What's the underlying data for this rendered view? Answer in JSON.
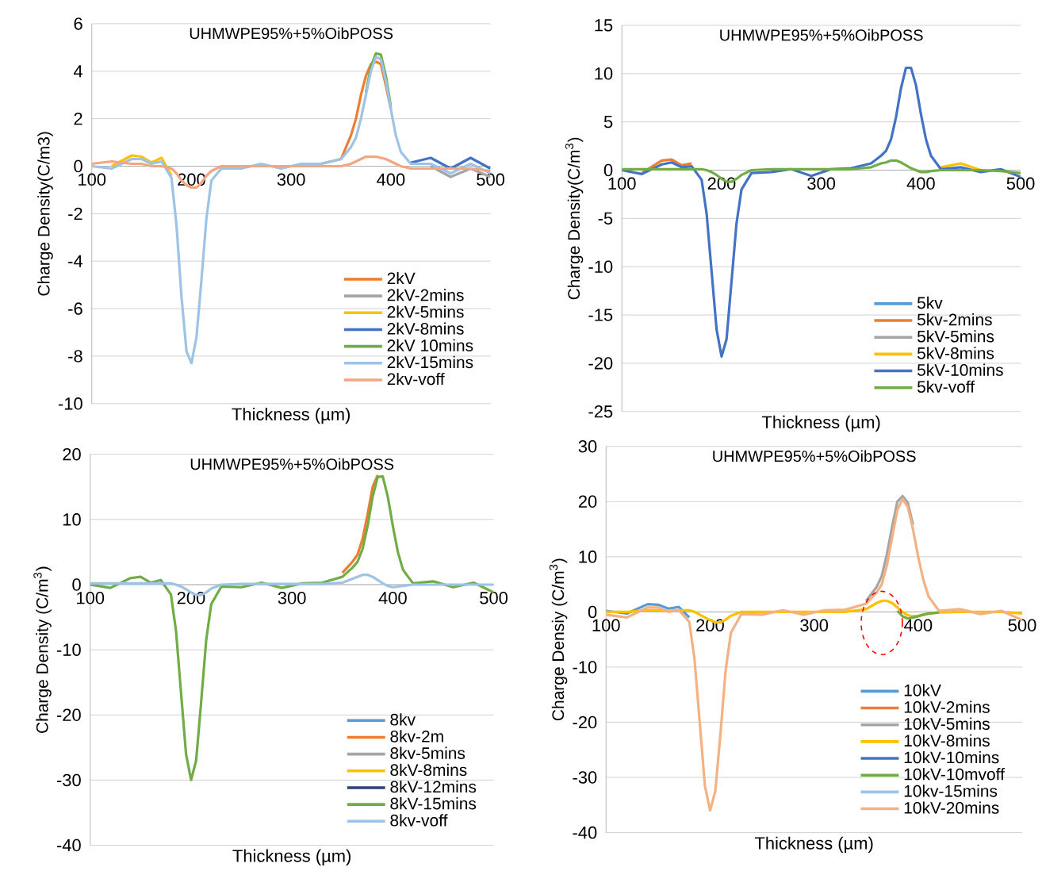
{
  "chart_data": [
    {
      "type": "line",
      "title": "UHMWPE95%+5%OibPOSS",
      "xlabel": "Thickness (µm)",
      "ylabel": "Charge Density(C/m3)",
      "xlim": [
        100,
        500
      ],
      "xticks": [
        100,
        200,
        300,
        400,
        500
      ],
      "ylim": [
        -10,
        6
      ],
      "yticks": [
        -10,
        -8,
        -6,
        -4,
        -2,
        0,
        2,
        4,
        6
      ],
      "grid": "y",
      "legend": "bottom right",
      "x": [
        100,
        120,
        140,
        150,
        160,
        170,
        180,
        185,
        190,
        195,
        200,
        205,
        210,
        215,
        220,
        230,
        250,
        270,
        290,
        310,
        330,
        350,
        360,
        365,
        370,
        375,
        380,
        385,
        390,
        395,
        400,
        405,
        410,
        420,
        440,
        460,
        480,
        500
      ],
      "series": [
        {
          "name": "2kV",
          "color": "#ed7d31",
          "values": [
            null,
            null,
            null,
            null,
            null,
            null,
            null,
            null,
            null,
            null,
            null,
            null,
            null,
            null,
            null,
            null,
            null,
            null,
            null,
            null,
            0.1,
            0.3,
            1.3,
            2.0,
            3.0,
            3.8,
            4.3,
            4.4,
            4.3,
            3.4,
            2.4,
            null,
            null,
            null,
            null,
            null,
            null,
            null
          ]
        },
        {
          "name": "2kV-2mins",
          "color": "#a5a5a5",
          "values": [
            null,
            null,
            null,
            null,
            null,
            null,
            null,
            null,
            null,
            null,
            null,
            null,
            null,
            null,
            null,
            null,
            null,
            null,
            null,
            null,
            null,
            null,
            null,
            null,
            null,
            null,
            null,
            null,
            null,
            null,
            null,
            null,
            null,
            null,
            0.0,
            -0.45,
            -0.1,
            -0.45
          ]
        },
        {
          "name": "2kV-5mins",
          "color": "#ffc000",
          "values": [
            null,
            0.0,
            0.45,
            0.4,
            0.15,
            0.35,
            -0.4,
            null,
            null,
            null,
            null,
            null,
            null,
            null,
            null,
            null,
            null,
            null,
            null,
            null,
            null,
            null,
            null,
            null,
            null,
            null,
            null,
            null,
            null,
            null,
            null,
            null,
            null,
            null,
            null,
            null,
            null,
            null
          ]
        },
        {
          "name": "2kV-8mins",
          "color": "#4472c4",
          "values": [
            null,
            null,
            null,
            null,
            null,
            null,
            null,
            null,
            null,
            null,
            null,
            null,
            null,
            null,
            null,
            null,
            null,
            null,
            null,
            null,
            null,
            null,
            null,
            null,
            null,
            null,
            null,
            null,
            null,
            null,
            null,
            null,
            null,
            0.15,
            0.35,
            -0.1,
            0.35,
            -0.1
          ]
        },
        {
          "name": "2kV 10mins",
          "color": "#70ad47",
          "values": [
            null,
            null,
            null,
            null,
            null,
            null,
            null,
            null,
            null,
            null,
            null,
            null,
            null,
            null,
            null,
            null,
            null,
            null,
            null,
            null,
            null,
            null,
            null,
            null,
            null,
            3.1,
            4.2,
            4.75,
            4.7,
            3.8,
            2.5,
            null,
            null,
            null,
            null,
            null,
            null,
            null
          ]
        },
        {
          "name": "2kV-15mins",
          "color": "#9dc3e6",
          "values": [
            0.0,
            -0.1,
            0.3,
            0.3,
            0.1,
            0.2,
            -0.5,
            -2.5,
            -5.5,
            -7.8,
            -8.3,
            -7.2,
            -4.8,
            -2.2,
            -0.6,
            -0.1,
            -0.1,
            0.1,
            -0.1,
            0.1,
            0.1,
            0.3,
            0.8,
            1.2,
            2.0,
            3.0,
            4.0,
            4.6,
            4.5,
            3.6,
            2.4,
            1.3,
            0.6,
            0.1,
            0.1,
            -0.3,
            0.1,
            -0.3
          ]
        },
        {
          "name": "2kv-voff",
          "color": "#f4a582",
          "values": [
            0.1,
            0.2,
            0.1,
            0.1,
            0.0,
            0.0,
            -0.1,
            -0.3,
            -0.6,
            -0.8,
            -0.9,
            -0.9,
            -0.7,
            -0.4,
            -0.2,
            0.0,
            0.0,
            0.0,
            0.0,
            0.0,
            0.0,
            0.0,
            0.1,
            0.2,
            0.3,
            0.4,
            0.4,
            0.4,
            0.35,
            0.3,
            0.2,
            0.1,
            0.0,
            -0.1,
            -0.1,
            -0.1,
            -0.1,
            -0.2
          ]
        }
      ]
    },
    {
      "type": "line",
      "title": "UHMWPE95%+5%OibPOSS",
      "xlabel": "Thickness (µm)",
      "ylabel": "Charge Density(C/m$^{3}$)",
      "xlim": [
        100,
        500
      ],
      "xticks": [
        100,
        200,
        300,
        400,
        500
      ],
      "ylim": [
        -25,
        15
      ],
      "yticks": [
        -25,
        -20,
        -15,
        -10,
        -5,
        0,
        5,
        10,
        15
      ],
      "grid": "y",
      "legend": "bottom right",
      "x": [
        100,
        120,
        140,
        150,
        160,
        170,
        180,
        185,
        190,
        195,
        200,
        205,
        210,
        215,
        220,
        230,
        250,
        270,
        290,
        310,
        330,
        350,
        360,
        365,
        370,
        375,
        380,
        385,
        390,
        395,
        400,
        405,
        410,
        420,
        440,
        460,
        480,
        500
      ],
      "series": [
        {
          "name": "5kv",
          "color": "#5b9bd5",
          "values": [
            null,
            null,
            null,
            null,
            null,
            null,
            null,
            null,
            null,
            null,
            null,
            null,
            null,
            null,
            null,
            null,
            null,
            null,
            null,
            null,
            null,
            null,
            null,
            null,
            null,
            null,
            null,
            null,
            null,
            null,
            null,
            null,
            null,
            null,
            null,
            null,
            null,
            null
          ]
        },
        {
          "name": "5kv-2mins",
          "color": "#ed7d31",
          "values": [
            null,
            -0.3,
            1.0,
            1.1,
            0.5,
            0.7,
            null,
            null,
            null,
            null,
            null,
            null,
            null,
            null,
            null,
            null,
            null,
            null,
            null,
            null,
            null,
            null,
            null,
            null,
            null,
            null,
            null,
            null,
            null,
            null,
            null,
            null,
            null,
            null,
            null,
            null,
            null,
            null
          ]
        },
        {
          "name": "5kV-5mins",
          "color": "#a5a5a5",
          "values": [
            null,
            null,
            null,
            null,
            null,
            null,
            null,
            null,
            null,
            null,
            null,
            null,
            null,
            null,
            null,
            null,
            null,
            null,
            null,
            null,
            null,
            null,
            null,
            null,
            null,
            null,
            null,
            null,
            null,
            null,
            null,
            null,
            null,
            null,
            null,
            null,
            null,
            null
          ]
        },
        {
          "name": "5kV-8mins",
          "color": "#ffc000",
          "values": [
            null,
            null,
            null,
            null,
            null,
            null,
            null,
            null,
            null,
            null,
            null,
            null,
            null,
            null,
            null,
            null,
            null,
            null,
            null,
            null,
            null,
            null,
            null,
            null,
            null,
            null,
            null,
            null,
            null,
            null,
            null,
            null,
            null,
            0.3,
            0.7,
            0.0,
            null,
            null
          ]
        },
        {
          "name": "5kV-10mins",
          "color": "#4472c4",
          "values": [
            0.0,
            -0.4,
            0.6,
            0.8,
            0.3,
            0.4,
            -1.0,
            -4.5,
            -10.5,
            -16.5,
            -19.3,
            -17.5,
            -11.5,
            -5.5,
            -2.0,
            -0.3,
            -0.2,
            0.1,
            -0.6,
            0.1,
            0.2,
            0.7,
            1.5,
            2.0,
            3.2,
            5.5,
            8.5,
            10.6,
            10.6,
            8.8,
            5.8,
            3.2,
            1.5,
            0.1,
            0.3,
            -0.2,
            0.1,
            -0.7
          ]
        },
        {
          "name": "5kv-voff",
          "color": "#70ad47",
          "values": [
            0.1,
            0.1,
            0.1,
            0.1,
            0.1,
            0.1,
            0.1,
            0.0,
            -0.2,
            -0.5,
            -0.9,
            -1.2,
            -1.2,
            -0.9,
            -0.5,
            0.0,
            0.1,
            0.1,
            0.1,
            0.1,
            0.1,
            0.3,
            0.7,
            0.8,
            1.0,
            1.0,
            0.8,
            0.5,
            0.2,
            0.0,
            -0.2,
            -0.2,
            -0.1,
            0.0,
            0.0,
            0.0,
            -0.1,
            -0.3
          ]
        }
      ]
    },
    {
      "type": "line",
      "title": "UHMWPE95%+5%OibPOSS",
      "xlabel": "Thickness (µm)",
      "ylabel": "Charge Density (C/m$^{3}$)",
      "xlim": [
        100,
        500
      ],
      "xticks": [
        100,
        200,
        300,
        400,
        500
      ],
      "ylim": [
        -40,
        20
      ],
      "yticks": [
        -40,
        -30,
        -20,
        -10,
        0,
        10,
        20
      ],
      "grid": "y",
      "legend": "bottom right",
      "x": [
        100,
        120,
        140,
        150,
        160,
        170,
        180,
        185,
        190,
        195,
        200,
        205,
        210,
        215,
        220,
        230,
        250,
        270,
        290,
        310,
        330,
        350,
        360,
        365,
        370,
        375,
        380,
        385,
        390,
        395,
        400,
        405,
        410,
        420,
        440,
        460,
        480,
        500
      ],
      "series": [
        {
          "name": "8kv",
          "color": "#5b9bd5",
          "values": [
            null,
            null,
            null,
            null,
            null,
            null,
            null,
            null,
            null,
            null,
            null,
            null,
            null,
            null,
            null,
            null,
            null,
            null,
            null,
            null,
            null,
            null,
            null,
            null,
            null,
            null,
            null,
            null,
            null,
            null,
            null,
            null,
            null,
            null,
            null,
            null,
            null,
            null
          ]
        },
        {
          "name": "8kv-2m",
          "color": "#ed7d31",
          "values": [
            null,
            null,
            null,
            null,
            null,
            null,
            null,
            null,
            null,
            null,
            null,
            null,
            null,
            null,
            null,
            null,
            null,
            null,
            null,
            null,
            null,
            1.8,
            3.5,
            4.6,
            7.0,
            10.8,
            15.0,
            16.8,
            null,
            null,
            null,
            null,
            null,
            null,
            null,
            null,
            null,
            null
          ]
        },
        {
          "name": "8kv-5mins",
          "color": "#a5a5a5",
          "values": [
            null,
            null,
            null,
            null,
            null,
            null,
            null,
            null,
            null,
            null,
            null,
            null,
            null,
            null,
            null,
            null,
            null,
            null,
            null,
            null,
            null,
            null,
            null,
            null,
            null,
            null,
            null,
            null,
            null,
            null,
            null,
            null,
            null,
            null,
            null,
            null,
            null,
            null
          ]
        },
        {
          "name": "8kV-8mins",
          "color": "#ffc000",
          "values": [
            null,
            null,
            null,
            null,
            null,
            null,
            null,
            null,
            null,
            null,
            null,
            null,
            null,
            null,
            null,
            null,
            null,
            null,
            null,
            null,
            null,
            null,
            null,
            null,
            null,
            null,
            null,
            null,
            null,
            null,
            null,
            null,
            null,
            null,
            null,
            null,
            null,
            null
          ]
        },
        {
          "name": "8kV-12mins",
          "color": "#264478",
          "values": [
            null,
            null,
            null,
            null,
            null,
            null,
            null,
            null,
            null,
            null,
            null,
            null,
            null,
            null,
            null,
            null,
            null,
            null,
            null,
            null,
            null,
            null,
            null,
            null,
            null,
            null,
            null,
            null,
            null,
            null,
            null,
            null,
            null,
            null,
            null,
            null,
            null,
            null
          ]
        },
        {
          "name": "8kV-15mins",
          "color": "#70ad47",
          "values": [
            0.0,
            -0.5,
            1.0,
            1.2,
            0.3,
            0.7,
            -1.5,
            -7.0,
            -16.5,
            -26.0,
            -30.0,
            -27.0,
            -18.0,
            -8.5,
            -3.0,
            -0.3,
            -0.4,
            0.3,
            -0.5,
            0.2,
            0.3,
            1.2,
            2.6,
            3.5,
            5.5,
            9.0,
            13.5,
            16.5,
            16.6,
            13.5,
            9.0,
            5.0,
            2.3,
            0.2,
            0.5,
            -0.4,
            0.3,
            -1.2
          ]
        },
        {
          "name": "8kv-voff",
          "color": "#9dc3e6",
          "values": [
            0.2,
            0.2,
            0.2,
            0.2,
            0.2,
            0.2,
            0.2,
            0.0,
            -0.3,
            -0.7,
            -1.2,
            -1.6,
            -1.6,
            -1.2,
            -0.6,
            0.0,
            0.1,
            0.1,
            0.1,
            0.1,
            0.1,
            0.3,
            0.9,
            1.2,
            1.5,
            1.5,
            1.2,
            0.7,
            0.2,
            -0.2,
            -0.4,
            -0.3,
            -0.2,
            0.0,
            0.0,
            0.0,
            0.0,
            0.0
          ]
        }
      ]
    },
    {
      "type": "line",
      "title": "UHMWPE95%+5%OibPOSS",
      "xlabel": "Thickness (µm)",
      "ylabel": "Charge Densiy (C/m$^{3}$)",
      "xlim": [
        100,
        500
      ],
      "xticks": [
        100,
        200,
        300,
        400,
        500
      ],
      "ylim": [
        -40,
        30
      ],
      "yticks": [
        -40,
        -30,
        -20,
        -10,
        0,
        10,
        20,
        30
      ],
      "grid": "y",
      "legend": "bottom right",
      "x": [
        100,
        120,
        140,
        150,
        160,
        170,
        180,
        185,
        190,
        195,
        200,
        205,
        210,
        215,
        220,
        230,
        250,
        270,
        290,
        310,
        330,
        350,
        360,
        365,
        370,
        375,
        380,
        385,
        390,
        395,
        400,
        405,
        410,
        420,
        440,
        460,
        480,
        500
      ],
      "series": [
        {
          "name": "10kV",
          "color": "#5b9bd5",
          "values": [
            0.2,
            -0.3,
            1.4,
            1.3,
            0.6,
            0.9,
            -1.0,
            null,
            null,
            null,
            null,
            null,
            null,
            null,
            null,
            null,
            null,
            null,
            null,
            null,
            null,
            null,
            null,
            null,
            null,
            null,
            null,
            null,
            null,
            null,
            null,
            null,
            null,
            null,
            null,
            null,
            null,
            null
          ]
        },
        {
          "name": "10kV-2mins",
          "color": "#ed7d31",
          "values": [
            null,
            null,
            null,
            null,
            null,
            null,
            null,
            null,
            null,
            null,
            null,
            null,
            null,
            null,
            null,
            null,
            null,
            null,
            null,
            null,
            null,
            null,
            null,
            null,
            null,
            null,
            null,
            null,
            null,
            null,
            null,
            null,
            null,
            null,
            null,
            null,
            null,
            null
          ]
        },
        {
          "name": "10kV-5mins",
          "color": "#a5a5a5",
          "values": [
            null,
            null,
            null,
            null,
            null,
            null,
            null,
            null,
            null,
            null,
            null,
            null,
            null,
            null,
            null,
            null,
            null,
            null,
            null,
            null,
            null,
            2.0,
            4.5,
            6.5,
            10.5,
            15.5,
            20.0,
            21.0,
            19.8,
            15.8,
            null,
            null,
            null,
            null,
            null,
            null,
            null,
            null
          ]
        },
        {
          "name": "10kV-8mins",
          "color": "#ffc000",
          "values": [
            0.0,
            0.0,
            0.3,
            0.3,
            0.2,
            0.3,
            0.3,
            0.0,
            -0.5,
            -1.0,
            -1.5,
            -1.9,
            -1.9,
            -1.4,
            -0.7,
            0.0,
            0.0,
            0.0,
            0.0,
            0.0,
            0.0,
            0.5,
            1.6,
            2.0,
            2.0,
            1.6,
            0.8,
            0.0,
            -0.6,
            -0.8,
            -0.7,
            -0.5,
            -0.3,
            -0.1,
            0.0,
            0.0,
            0.0,
            -0.3
          ]
        },
        {
          "name": "10kV-10mins",
          "color": "#4472c4",
          "values": [
            null,
            null,
            null,
            null,
            null,
            null,
            null,
            null,
            null,
            null,
            null,
            null,
            null,
            null,
            null,
            null,
            null,
            null,
            null,
            null,
            null,
            null,
            null,
            null,
            null,
            null,
            null,
            null,
            null,
            null,
            null,
            null,
            null,
            null,
            null,
            null,
            null,
            null
          ]
        },
        {
          "name": "10kV-10mvoff",
          "color": "#70ad47",
          "values": [
            null,
            null,
            null,
            null,
            null,
            null,
            null,
            null,
            null,
            null,
            null,
            null,
            null,
            null,
            null,
            null,
            null,
            null,
            null,
            null,
            null,
            null,
            null,
            null,
            null,
            null,
            0.2,
            -0.8,
            -1.2,
            -1.0,
            -0.8,
            -0.5,
            -0.3,
            -0.1,
            null,
            null,
            null,
            null
          ]
        },
        {
          "name": "10kv-15mins",
          "color": "#9dc3e6",
          "values": [
            null,
            null,
            null,
            null,
            null,
            null,
            null,
            null,
            null,
            null,
            null,
            null,
            null,
            null,
            null,
            null,
            null,
            null,
            null,
            null,
            null,
            null,
            null,
            null,
            null,
            null,
            null,
            null,
            null,
            null,
            null,
            null,
            null,
            null,
            null,
            null,
            null,
            null
          ]
        },
        {
          "name": "10kV-20mins",
          "color": "#f4b183",
          "values": [
            -0.5,
            -1.0,
            0.8,
            0.8,
            0.0,
            0.3,
            -1.8,
            -8.5,
            -20.0,
            -31.5,
            -36.0,
            -32.5,
            -22.0,
            -10.5,
            -3.8,
            -0.4,
            -0.5,
            0.3,
            -0.5,
            0.3,
            0.4,
            1.5,
            3.5,
            5.0,
            8.5,
            13.5,
            18.5,
            20.5,
            19.0,
            15.0,
            10.0,
            5.8,
            2.8,
            0.2,
            0.5,
            -0.4,
            0.2,
            -1.5
          ]
        }
      ]
    }
  ]
}
